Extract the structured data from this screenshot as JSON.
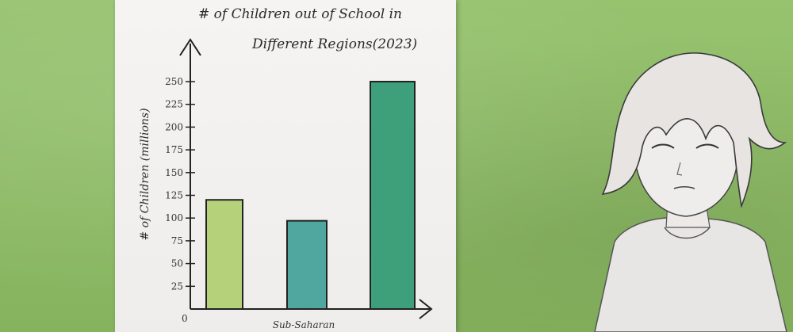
{
  "chart_data": {
    "type": "bar",
    "title": "# of Children out of School in Different Regions(2023)",
    "title_line1": "# of Children out of School in",
    "title_line2": "Different Regions(2023)",
    "ylabel": "# of Children (millions)",
    "ylim": [
      0,
      250
    ],
    "yticks": [
      25,
      50,
      75,
      100,
      125,
      150,
      175,
      200,
      225,
      250
    ],
    "origin_label": "0",
    "categories": [
      "",
      "Sub-Saharan",
      ""
    ],
    "values": [
      120,
      97,
      250
    ],
    "colors": [
      "#b5d27a",
      "#4fa7a0",
      "#3da07a"
    ]
  }
}
